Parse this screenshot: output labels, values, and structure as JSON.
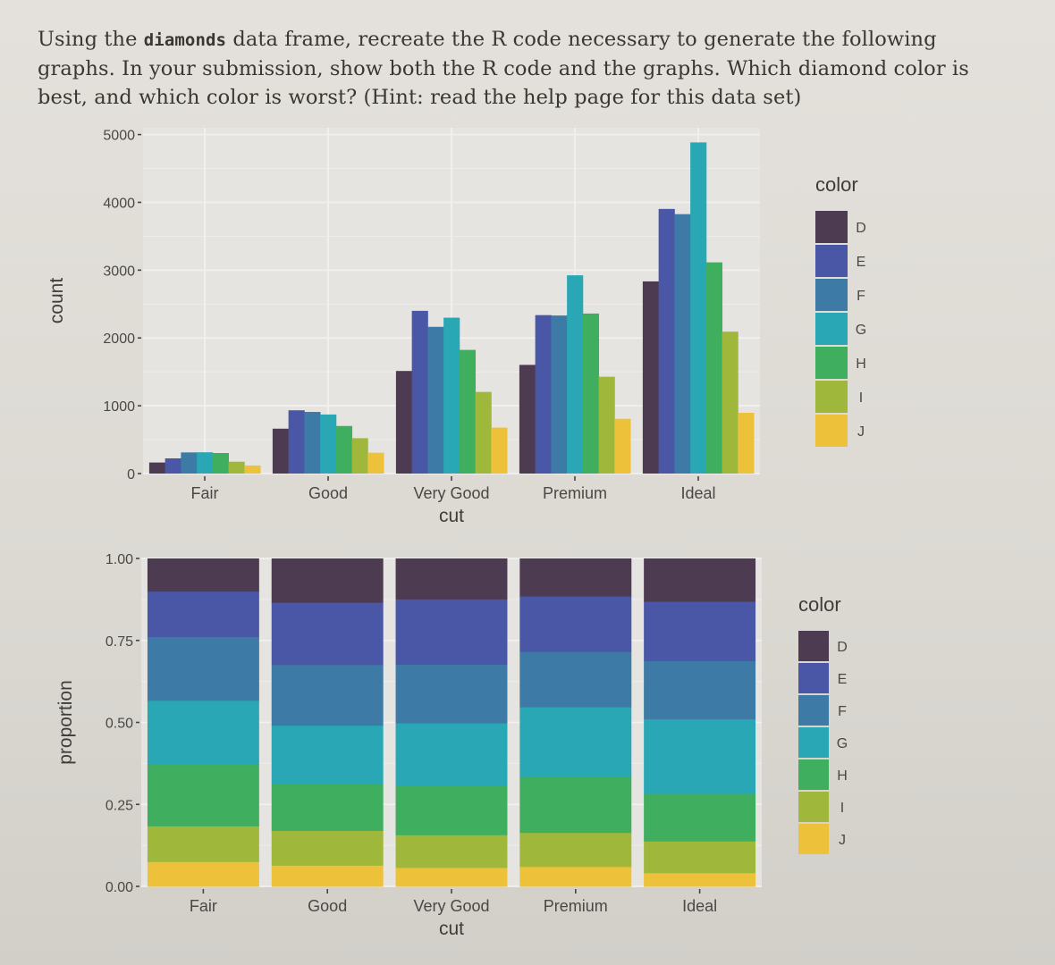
{
  "question": {
    "part1": "Using the ",
    "code": "diamonds",
    "part2": " data frame, recreate the R code necessary to generate the following graphs. In your submission, show both the R code and the graphs. Which diamond color is best, and which color is worst? (Hint: read the help page for this data set)"
  },
  "colors": {
    "D": "#4d3b52",
    "E": "#4a56a6",
    "F": "#3d7aa6",
    "G": "#2aa7b5",
    "H": "#3fae5f",
    "I": "#9fb83c",
    "J": "#eec13a"
  },
  "chart_data": [
    {
      "type": "bar",
      "position": "dodge",
      "xlabel": "cut",
      "ylabel": "count",
      "legend_title": "color",
      "legend_placement": "right",
      "categories": [
        "Fair",
        "Good",
        "Very Good",
        "Premium",
        "Ideal"
      ],
      "ylim": [
        0,
        5100
      ],
      "yticks": [
        0,
        1000,
        2000,
        3000,
        4000,
        5000
      ],
      "yticklabels": [
        "0",
        "1000",
        "2000",
        "3000",
        "4000",
        "5000"
      ],
      "grid": true,
      "series": [
        {
          "name": "D",
          "values": [
            163,
            662,
            1513,
            1603,
            2834
          ]
        },
        {
          "name": "E",
          "values": [
            224,
            933,
            2400,
            2337,
            3903
          ]
        },
        {
          "name": "F",
          "values": [
            312,
            909,
            2164,
            2331,
            3826
          ]
        },
        {
          "name": "G",
          "values": [
            314,
            871,
            2299,
            2924,
            4884
          ]
        },
        {
          "name": "H",
          "values": [
            303,
            702,
            1824,
            2360,
            3115
          ]
        },
        {
          "name": "I",
          "values": [
            175,
            522,
            1204,
            1428,
            2093
          ]
        },
        {
          "name": "J",
          "values": [
            119,
            307,
            678,
            808,
            896
          ]
        }
      ]
    },
    {
      "type": "bar",
      "position": "fill",
      "xlabel": "cut",
      "ylabel": "proportion",
      "legend_title": "color",
      "legend_placement": "right",
      "categories": [
        "Fair",
        "Good",
        "Very Good",
        "Premium",
        "Ideal"
      ],
      "ylim": [
        0,
        1
      ],
      "yticks": [
        0,
        0.25,
        0.5,
        0.75,
        1
      ],
      "yticklabels": [
        "0.00",
        "0.25",
        "0.50",
        "0.75",
        "1.00"
      ],
      "grid": true,
      "series": [
        {
          "name": "D",
          "values": [
            0.101,
            0.135,
            0.125,
            0.116,
            0.132
          ]
        },
        {
          "name": "E",
          "values": [
            0.139,
            0.19,
            0.199,
            0.169,
            0.181
          ]
        },
        {
          "name": "F",
          "values": [
            0.194,
            0.185,
            0.179,
            0.169,
            0.178
          ]
        },
        {
          "name": "G",
          "values": [
            0.195,
            0.178,
            0.19,
            0.212,
            0.227
          ]
        },
        {
          "name": "H",
          "values": [
            0.188,
            0.143,
            0.151,
            0.171,
            0.145
          ]
        },
        {
          "name": "I",
          "values": [
            0.109,
            0.106,
            0.1,
            0.104,
            0.097
          ]
        },
        {
          "name": "J",
          "values": [
            0.074,
            0.063,
            0.056,
            0.059,
            0.04
          ]
        }
      ]
    }
  ]
}
